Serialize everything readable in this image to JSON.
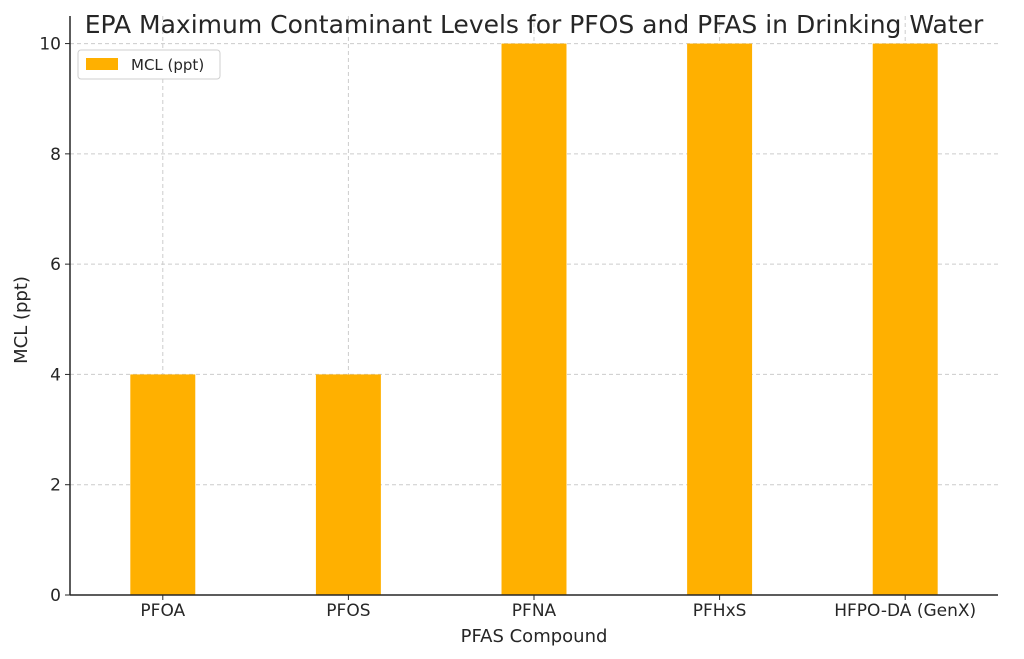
{
  "chart_data": {
    "type": "bar",
    "title": "EPA Maximum Contaminant Levels for PFOS and PFAS in Drinking Water",
    "xlabel": "PFAS Compound",
    "ylabel": "MCL (ppt)",
    "categories": [
      "PFOA",
      "PFOS",
      "PFNA",
      "PFHxS",
      "HFPO-DA (GenX)"
    ],
    "series": [
      {
        "name": "MCL (ppt)",
        "values": [
          4,
          4,
          10,
          10,
          10
        ],
        "color": "#FFB000"
      }
    ],
    "ylim": [
      0,
      10.5
    ],
    "yticks": [
      0,
      2,
      4,
      6,
      8,
      10
    ],
    "grid": true,
    "legend": "top-left"
  }
}
